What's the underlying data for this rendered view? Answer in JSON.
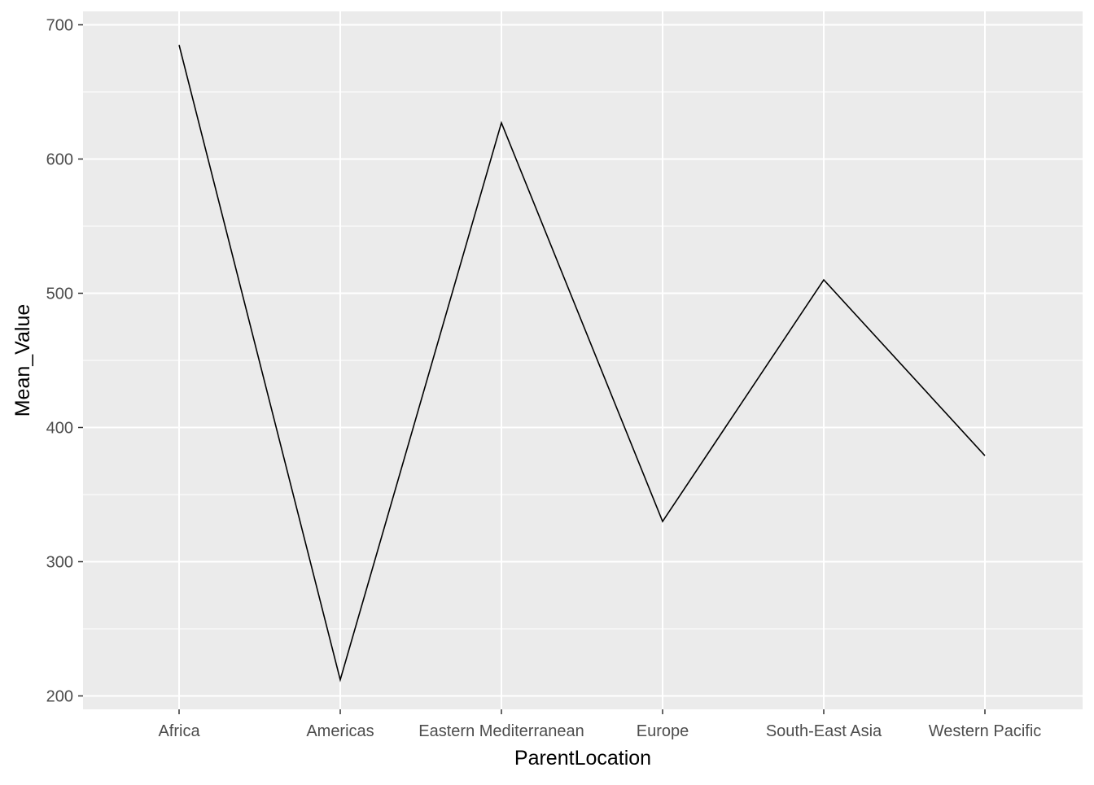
{
  "chart_data": {
    "type": "line",
    "title": "",
    "xlabel": "ParentLocation",
    "ylabel": "Mean_Value",
    "categories": [
      "Africa",
      "Americas",
      "Eastern Mediterranean",
      "Europe",
      "South-East Asia",
      "Western Pacific"
    ],
    "series": [
      {
        "values": [
          685,
          212,
          627,
          330,
          510,
          379
        ]
      }
    ],
    "y_ticks": [
      200,
      300,
      400,
      500,
      600,
      700
    ],
    "y_tick_labels": [
      "200",
      "300",
      "400",
      "500",
      "600",
      "700"
    ],
    "ylim": [
      190,
      710
    ],
    "grid": true,
    "legend": "none",
    "colors": {
      "panel_background": "#EBEBEB",
      "grid_line": "#FFFFFF",
      "line": "#000000",
      "tick_label": "#4D4D4D",
      "axis_title": "#000000"
    }
  }
}
